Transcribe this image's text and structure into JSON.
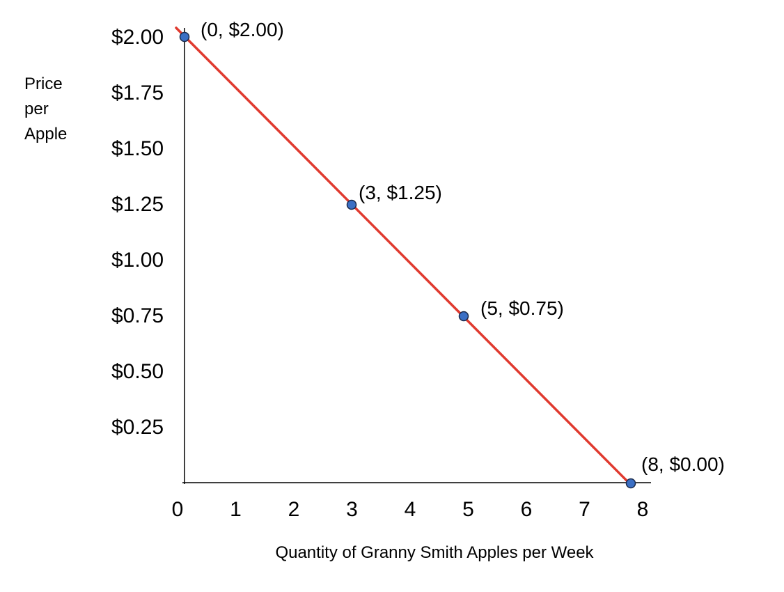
{
  "chart_data": {
    "type": "line",
    "title": "",
    "xlabel": "Quantity of Granny Smith Apples per Week",
    "ylabel": [
      "Price",
      "per",
      "Apple"
    ],
    "xlim": [
      0,
      8
    ],
    "ylim": [
      0,
      2.0
    ],
    "x_ticks": [
      "0",
      "1",
      "2",
      "3",
      "4",
      "5",
      "6",
      "7",
      "8"
    ],
    "y_ticks": [
      {
        "value": 2.0,
        "label": "$2.00"
      },
      {
        "value": 1.75,
        "label": "$1.75"
      },
      {
        "value": 1.5,
        "label": "$1.50"
      },
      {
        "value": 1.25,
        "label": "$1.25"
      },
      {
        "value": 1.0,
        "label": "$1.00"
      },
      {
        "value": 0.75,
        "label": "$0.75"
      },
      {
        "value": 0.5,
        "label": "$0.50"
      },
      {
        "value": 0.25,
        "label": "$0.25"
      }
    ],
    "line": {
      "x": [
        0,
        8
      ],
      "y": [
        2.0,
        0.0
      ],
      "color": "#e03a2f"
    },
    "points": [
      {
        "x": 0,
        "y": 2.0,
        "label": "(0, $2.00)"
      },
      {
        "x": 3,
        "y": 1.25,
        "label": "(3, $1.25)"
      },
      {
        "x": 5,
        "y": 0.75,
        "label": "(5, $0.75)"
      },
      {
        "x": 8,
        "y": 0.0,
        "label": "(8, $0.00)"
      }
    ],
    "point_color": "#3b6fc4",
    "grid": false,
    "legend": "none"
  }
}
